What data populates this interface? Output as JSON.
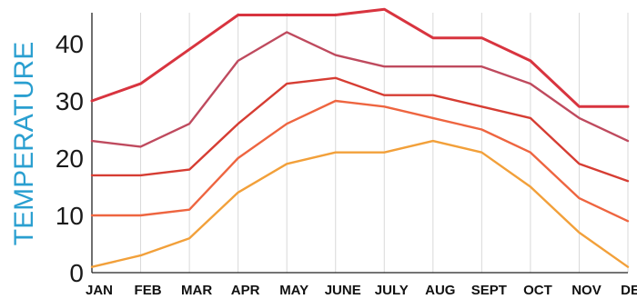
{
  "chart_data": {
    "type": "line",
    "title": "",
    "ylabel": "TEMPERATURE",
    "xlabel": "",
    "categories": [
      "JAN",
      "FEB",
      "MAR",
      "APR",
      "MAY",
      "JUNE",
      "JULY",
      "AUG",
      "SEPT",
      "OCT",
      "NOV",
      "DEC"
    ],
    "ylim": [
      0,
      45
    ],
    "yticks": [
      0,
      10,
      20,
      30,
      40
    ],
    "grid": "vertical",
    "legend": "none",
    "series": [
      {
        "color": "#d8343f",
        "values": [
          30,
          33,
          39,
          45,
          45,
          45,
          46,
          41,
          41,
          37,
          29,
          29
        ]
      },
      {
        "color": "#bf4a5e",
        "values": [
          23,
          22,
          26,
          37,
          42,
          38,
          36,
          36,
          36,
          33,
          27,
          23
        ]
      },
      {
        "color": "#d63d33",
        "values": [
          17,
          17,
          18,
          26,
          33,
          34,
          31,
          31,
          29,
          27,
          19,
          16
        ]
      },
      {
        "color": "#ee6540",
        "values": [
          10,
          10,
          11,
          20,
          26,
          30,
          29,
          27,
          25,
          21,
          13,
          9
        ]
      },
      {
        "color": "#f2a03a",
        "values": [
          1,
          3,
          6,
          14,
          19,
          21,
          21,
          23,
          21,
          15,
          7,
          1
        ]
      }
    ]
  }
}
